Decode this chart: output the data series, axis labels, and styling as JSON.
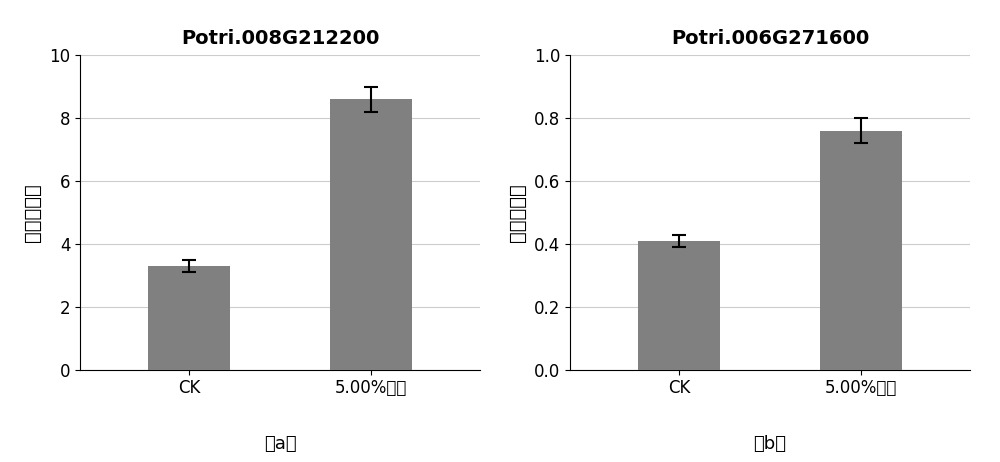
{
  "plot_a": {
    "title": "Potri.008G212200",
    "categories": [
      "CK",
      "5.00%毒素"
    ],
    "values": [
      3.3,
      8.6
    ],
    "errors": [
      0.2,
      0.4
    ],
    "ylabel": "相对表达量",
    "ylim": [
      0,
      10
    ],
    "yticks": [
      0,
      2,
      4,
      6,
      8,
      10
    ],
    "bar_color": "#808080",
    "bar_width": 0.45,
    "label": "（a）"
  },
  "plot_b": {
    "title": "Potri.006G271600",
    "categories": [
      "CK",
      "5.00%毒素"
    ],
    "values": [
      0.41,
      0.76
    ],
    "errors": [
      0.02,
      0.04
    ],
    "ylabel": "相对表达量",
    "ylim": [
      0,
      1.0
    ],
    "yticks": [
      0,
      0.2,
      0.4,
      0.6,
      0.8,
      1.0
    ],
    "bar_color": "#808080",
    "bar_width": 0.45,
    "label": "（b）"
  },
  "background_color": "#ffffff",
  "title_fontsize": 14,
  "ylabel_fontsize": 14,
  "tick_fontsize": 12,
  "label_fontsize": 13,
  "error_capsize": 5,
  "error_linewidth": 1.5,
  "grid_color": "#cccccc"
}
